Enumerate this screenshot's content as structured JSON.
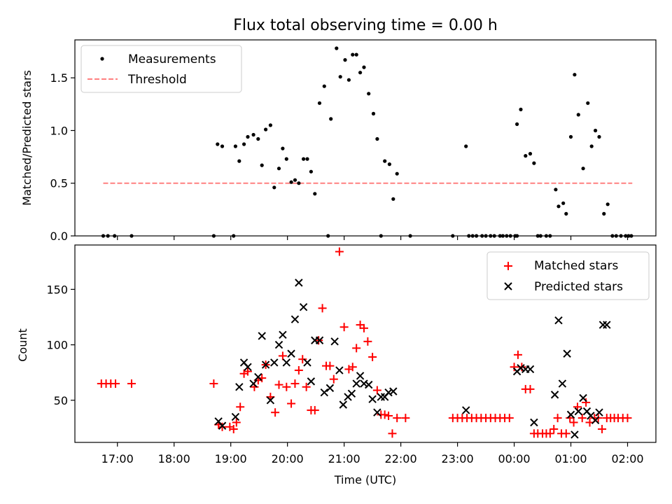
{
  "chart_data": [
    {
      "type": "scatter",
      "title": "Flux total observing time = 0.00 h",
      "xlabel": "",
      "ylabel": "Matched/Predicted stars",
      "ylim": [
        0,
        1.86
      ],
      "xlim": [
        "16:15",
        "02:30"
      ],
      "yticks": [
        0.0,
        0.5,
        1.0,
        1.5
      ],
      "ytick_labels": [
        "0.0",
        "0.5",
        "1.0",
        "1.5"
      ],
      "legend_position": "top-left",
      "legend": [
        "Measurements",
        "Threshold"
      ],
      "threshold": {
        "name": "Threshold",
        "value": 0.5,
        "x_start": "16:45",
        "x_end": "02:05",
        "color": "#ff8080"
      },
      "series": [
        {
          "name": "Measurements",
          "marker": "dot",
          "color": "#000000",
          "points": [
            [
              "16:45",
              0
            ],
            [
              "16:50",
              0
            ],
            [
              "16:57",
              0
            ],
            [
              "17:15",
              0
            ],
            [
              "18:42",
              0
            ],
            [
              "18:46",
              0.87
            ],
            [
              "18:51",
              0.85
            ],
            [
              "19:03",
              0
            ],
            [
              "19:05",
              0.85
            ],
            [
              "19:09",
              0.71
            ],
            [
              "19:14",
              0.87
            ],
            [
              "19:18",
              0.94
            ],
            [
              "19:24",
              0.96
            ],
            [
              "19:29",
              0.92
            ],
            [
              "19:33",
              0.67
            ],
            [
              "19:37",
              1.01
            ],
            [
              "19:42",
              1.05
            ],
            [
              "19:46",
              0.46
            ],
            [
              "19:51",
              0.64
            ],
            [
              "19:55",
              0.83
            ],
            [
              "19:59",
              0.73
            ],
            [
              "20:04",
              0.51
            ],
            [
              "20:08",
              0.53
            ],
            [
              "20:12",
              0.5
            ],
            [
              "20:17",
              0.73
            ],
            [
              "20:21",
              0.73
            ],
            [
              "20:25",
              0.61
            ],
            [
              "20:29",
              0.4
            ],
            [
              "20:34",
              1.26
            ],
            [
              "20:39",
              1.42
            ],
            [
              "20:43",
              0
            ],
            [
              "20:46",
              1.11
            ],
            [
              "20:52",
              1.78
            ],
            [
              "20:56",
              1.51
            ],
            [
              "21:01",
              1.67
            ],
            [
              "21:05",
              1.48
            ],
            [
              "21:09",
              1.72
            ],
            [
              "21:13",
              1.72
            ],
            [
              "21:17",
              1.55
            ],
            [
              "21:21",
              1.6
            ],
            [
              "21:26",
              1.35
            ],
            [
              "21:31",
              1.16
            ],
            [
              "21:35",
              0.92
            ],
            [
              "21:39",
              0
            ],
            [
              "21:43",
              0.71
            ],
            [
              "21:48",
              0.68
            ],
            [
              "21:52",
              0.35
            ],
            [
              "21:56",
              0.59
            ],
            [
              "22:10",
              0
            ],
            [
              "22:55",
              0
            ],
            [
              "23:09",
              0.85
            ],
            [
              "23:12",
              0
            ],
            [
              "23:16",
              0
            ],
            [
              "23:20",
              0
            ],
            [
              "23:26",
              0
            ],
            [
              "23:30",
              0
            ],
            [
              "23:35",
              0
            ],
            [
              "23:39",
              0
            ],
            [
              "23:45",
              0
            ],
            [
              "23:48",
              0
            ],
            [
              "23:52",
              0
            ],
            [
              "23:56",
              0
            ],
            [
              "00:01",
              0
            ],
            [
              "00:03",
              0
            ],
            [
              "00:03",
              1.06
            ],
            [
              "00:07",
              1.2
            ],
            [
              "00:12",
              0.76
            ],
            [
              "00:17",
              0.78
            ],
            [
              "00:21",
              0.69
            ],
            [
              "00:25",
              0
            ],
            [
              "00:28",
              0
            ],
            [
              "00:34",
              0
            ],
            [
              "00:38",
              0
            ],
            [
              "00:44",
              0.44
            ],
            [
              "00:47",
              0.28
            ],
            [
              "00:52",
              0.31
            ],
            [
              "00:55",
              0.21
            ],
            [
              "01:00",
              0.94
            ],
            [
              "01:04",
              1.53
            ],
            [
              "01:08",
              1.15
            ],
            [
              "01:13",
              0.64
            ],
            [
              "01:18",
              1.26
            ],
            [
              "01:22",
              0.85
            ],
            [
              "01:26",
              1.0
            ],
            [
              "01:30",
              0.94
            ],
            [
              "01:35",
              0.21
            ],
            [
              "01:39",
              0.3
            ],
            [
              "01:44",
              0
            ],
            [
              "01:48",
              0
            ],
            [
              "01:53",
              0
            ],
            [
              "01:58",
              0
            ],
            [
              "02:01",
              0
            ],
            [
              "02:04",
              0
            ]
          ]
        }
      ]
    },
    {
      "type": "scatter",
      "title": "",
      "xlabel": "Time (UTC)",
      "ylabel": "Count",
      "ylim": [
        12,
        190
      ],
      "xlim": [
        "16:15",
        "02:30"
      ],
      "yticks": [
        50,
        100,
        150
      ],
      "ytick_labels": [
        "50",
        "100",
        "150"
      ],
      "xticks": [
        "17:00",
        "18:00",
        "19:00",
        "20:00",
        "21:00",
        "22:00",
        "23:00",
        "00:00",
        "01:00",
        "02:00"
      ],
      "xtick_labels": [
        "17:00",
        "18:00",
        "19:00",
        "20:00",
        "21:00",
        "22:00",
        "23:00",
        "00:00",
        "01:00",
        "02:00"
      ],
      "legend_position": "top-right",
      "legend": [
        "Matched stars",
        "Predicted stars"
      ],
      "series": [
        {
          "name": "Matched stars",
          "marker": "plus",
          "color": "#ff0000",
          "points": [
            [
              "16:43",
              65
            ],
            [
              "16:48",
              65
            ],
            [
              "16:53",
              65
            ],
            [
              "16:58",
              65
            ],
            [
              "17:15",
              65
            ],
            [
              "18:42",
              65
            ],
            [
              "18:47",
              28
            ],
            [
              "18:51",
              26
            ],
            [
              "18:59",
              26
            ],
            [
              "19:03",
              24
            ],
            [
              "19:06",
              30
            ],
            [
              "19:10",
              44
            ],
            [
              "19:14",
              74
            ],
            [
              "19:18",
              76
            ],
            [
              "19:25",
              62
            ],
            [
              "19:29",
              68
            ],
            [
              "19:33",
              70
            ],
            [
              "19:37",
              82
            ],
            [
              "19:42",
              53
            ],
            [
              "19:47",
              39
            ],
            [
              "19:51",
              64
            ],
            [
              "19:55",
              90
            ],
            [
              "19:59",
              62
            ],
            [
              "20:04",
              47
            ],
            [
              "20:08",
              65
            ],
            [
              "20:12",
              77
            ],
            [
              "20:16",
              87
            ],
            [
              "20:20",
              62
            ],
            [
              "20:25",
              41
            ],
            [
              "20:29",
              41
            ],
            [
              "20:33",
              104
            ],
            [
              "20:37",
              133
            ],
            [
              "20:41",
              81
            ],
            [
              "20:45",
              81
            ],
            [
              "20:49",
              69
            ],
            [
              "20:55",
              184
            ],
            [
              "21:00",
              116
            ],
            [
              "21:05",
              78
            ],
            [
              "21:09",
              80
            ],
            [
              "21:13",
              97
            ],
            [
              "21:17",
              118
            ],
            [
              "21:21",
              115
            ],
            [
              "21:25",
              103
            ],
            [
              "21:30",
              89
            ],
            [
              "21:35",
              59
            ],
            [
              "21:39",
              37
            ],
            [
              "21:43",
              37
            ],
            [
              "21:47",
              36
            ],
            [
              "21:51",
              20
            ],
            [
              "21:56",
              34
            ],
            [
              "22:05",
              34
            ],
            [
              "22:55",
              34
            ],
            [
              "23:00",
              34
            ],
            [
              "23:05",
              34
            ],
            [
              "23:10",
              34
            ],
            [
              "23:15",
              34
            ],
            [
              "23:20",
              34
            ],
            [
              "23:25",
              34
            ],
            [
              "23:30",
              34
            ],
            [
              "23:35",
              34
            ],
            [
              "23:40",
              34
            ],
            [
              "23:45",
              34
            ],
            [
              "23:50",
              34
            ],
            [
              "23:55",
              34
            ],
            [
              "00:00",
              80
            ],
            [
              "00:04",
              91
            ],
            [
              "00:08",
              80
            ],
            [
              "00:12",
              60
            ],
            [
              "00:17",
              60
            ],
            [
              "00:21",
              20
            ],
            [
              "00:25",
              20
            ],
            [
              "00:30",
              20
            ],
            [
              "00:34",
              20
            ],
            [
              "00:38",
              20
            ],
            [
              "00:42",
              24
            ],
            [
              "00:46",
              34
            ],
            [
              "00:50",
              20
            ],
            [
              "00:55",
              20
            ],
            [
              "00:59",
              34
            ],
            [
              "01:03",
              30
            ],
            [
              "01:07",
              44
            ],
            [
              "01:12",
              34
            ],
            [
              "01:16",
              48
            ],
            [
              "01:20",
              30
            ],
            [
              "01:25",
              34
            ],
            [
              "01:29",
              34
            ],
            [
              "01:33",
              24
            ],
            [
              "01:38",
              34
            ],
            [
              "01:42",
              34
            ],
            [
              "01:46",
              34
            ],
            [
              "01:50",
              34
            ],
            [
              "01:55",
              34
            ],
            [
              "02:00",
              34
            ]
          ]
        },
        {
          "name": "Predicted stars",
          "marker": "x",
          "color": "#000000",
          "points": [
            [
              "18:47",
              31
            ],
            [
              "18:51",
              27
            ],
            [
              "19:05",
              35
            ],
            [
              "19:09",
              62
            ],
            [
              "19:14",
              84
            ],
            [
              "19:18",
              80
            ],
            [
              "19:24",
              65
            ],
            [
              "19:29",
              71
            ],
            [
              "19:33",
              108
            ],
            [
              "19:37",
              82
            ],
            [
              "19:42",
              50
            ],
            [
              "19:46",
              84
            ],
            [
              "19:51",
              100
            ],
            [
              "19:55",
              109
            ],
            [
              "19:59",
              84
            ],
            [
              "20:04",
              92
            ],
            [
              "20:08",
              123
            ],
            [
              "20:12",
              156
            ],
            [
              "20:17",
              134
            ],
            [
              "20:21",
              84
            ],
            [
              "20:25",
              67
            ],
            [
              "20:29",
              104
            ],
            [
              "20:34",
              104
            ],
            [
              "20:39",
              57
            ],
            [
              "20:45",
              61
            ],
            [
              "20:50",
              103
            ],
            [
              "20:55",
              77
            ],
            [
              "20:59",
              46
            ],
            [
              "21:04",
              53
            ],
            [
              "21:08",
              56
            ],
            [
              "21:13",
              65
            ],
            [
              "21:17",
              72
            ],
            [
              "21:21",
              65
            ],
            [
              "21:26",
              64
            ],
            [
              "21:30",
              51
            ],
            [
              "21:35",
              39
            ],
            [
              "21:39",
              53
            ],
            [
              "21:43",
              53
            ],
            [
              "21:47",
              57
            ],
            [
              "21:52",
              58
            ],
            [
              "23:09",
              41
            ],
            [
              "00:03",
              76
            ],
            [
              "00:07",
              79
            ],
            [
              "00:12",
              78
            ],
            [
              "00:17",
              78
            ],
            [
              "00:21",
              30
            ],
            [
              "00:43",
              55
            ],
            [
              "00:47",
              122
            ],
            [
              "00:51",
              65
            ],
            [
              "00:56",
              92
            ],
            [
              "01:00",
              37
            ],
            [
              "01:04",
              19
            ],
            [
              "01:08",
              40
            ],
            [
              "01:13",
              52
            ],
            [
              "01:17",
              40
            ],
            [
              "01:21",
              36
            ],
            [
              "01:26",
              32
            ],
            [
              "01:30",
              39
            ],
            [
              "01:34",
              118
            ],
            [
              "01:38",
              118
            ]
          ]
        }
      ]
    }
  ]
}
